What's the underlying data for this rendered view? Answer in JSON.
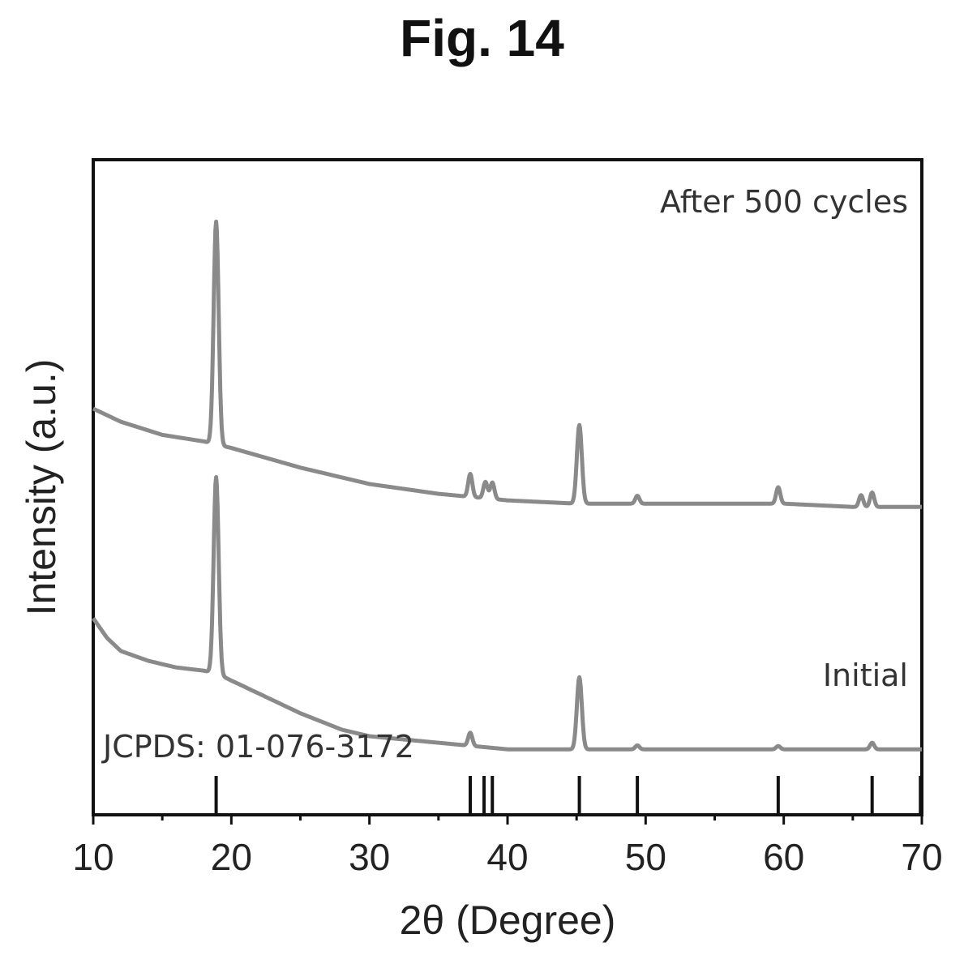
{
  "figure": {
    "title": "Fig. 14"
  },
  "chart_data": {
    "type": "line",
    "xlabel": "2θ (Degree)",
    "ylabel": "Intensity (a.u.)",
    "xlim": [
      10,
      70
    ],
    "xticks": [
      "10",
      "20",
      "30",
      "40",
      "50",
      "60",
      "70"
    ],
    "minor_xticks": [
      15,
      25,
      35,
      45,
      55,
      65
    ],
    "y_ticks_shown": false,
    "grid": false,
    "colors": {
      "trace": "#8a8a8a",
      "axis": "#111111",
      "reference": "#111111"
    },
    "series": [
      {
        "name": "After 500 cycles",
        "baseline": {
          "x": [
            10,
            12,
            15,
            18,
            20,
            25,
            30,
            35,
            40,
            45,
            50,
            55,
            60,
            65,
            70
          ],
          "y": [
            0.62,
            0.6,
            0.58,
            0.57,
            0.56,
            0.53,
            0.505,
            0.49,
            0.48,
            0.475,
            0.475,
            0.475,
            0.475,
            0.47,
            0.47
          ]
        },
        "peaks": [
          {
            "x": 18.9,
            "height": 0.34,
            "width": 0.18
          },
          {
            "x": 37.3,
            "height": 0.035,
            "width": 0.15
          },
          {
            "x": 38.4,
            "height": 0.025,
            "width": 0.15
          },
          {
            "x": 38.9,
            "height": 0.025,
            "width": 0.15
          },
          {
            "x": 45.2,
            "height": 0.12,
            "width": 0.18
          },
          {
            "x": 49.4,
            "height": 0.012,
            "width": 0.15
          },
          {
            "x": 59.6,
            "height": 0.025,
            "width": 0.15
          },
          {
            "x": 65.6,
            "height": 0.018,
            "width": 0.15
          },
          {
            "x": 66.4,
            "height": 0.022,
            "width": 0.15
          }
        ]
      },
      {
        "name": "Initial",
        "baseline": {
          "x": [
            10,
            11,
            12,
            14,
            16,
            18,
            19,
            20,
            22,
            25,
            28,
            30,
            35,
            40,
            45,
            50,
            55,
            60,
            65,
            70
          ],
          "y": [
            0.3,
            0.27,
            0.25,
            0.235,
            0.225,
            0.22,
            0.215,
            0.205,
            0.185,
            0.155,
            0.13,
            0.12,
            0.11,
            0.1,
            0.1,
            0.1,
            0.1,
            0.1,
            0.1,
            0.1
          ]
        },
        "peaks": [
          {
            "x": 18.9,
            "height": 0.3,
            "width": 0.18
          },
          {
            "x": 37.3,
            "height": 0.02,
            "width": 0.15
          },
          {
            "x": 45.2,
            "height": 0.11,
            "width": 0.18
          },
          {
            "x": 49.4,
            "height": 0.006,
            "width": 0.15
          },
          {
            "x": 59.6,
            "height": 0.005,
            "width": 0.15
          },
          {
            "x": 66.4,
            "height": 0.01,
            "width": 0.15
          }
        ]
      }
    ],
    "reference": {
      "label": "JCPDS: 01-076-3172",
      "positions": [
        18.9,
        37.3,
        38.3,
        38.9,
        45.2,
        49.4,
        59.6,
        66.4,
        69.9
      ]
    }
  }
}
